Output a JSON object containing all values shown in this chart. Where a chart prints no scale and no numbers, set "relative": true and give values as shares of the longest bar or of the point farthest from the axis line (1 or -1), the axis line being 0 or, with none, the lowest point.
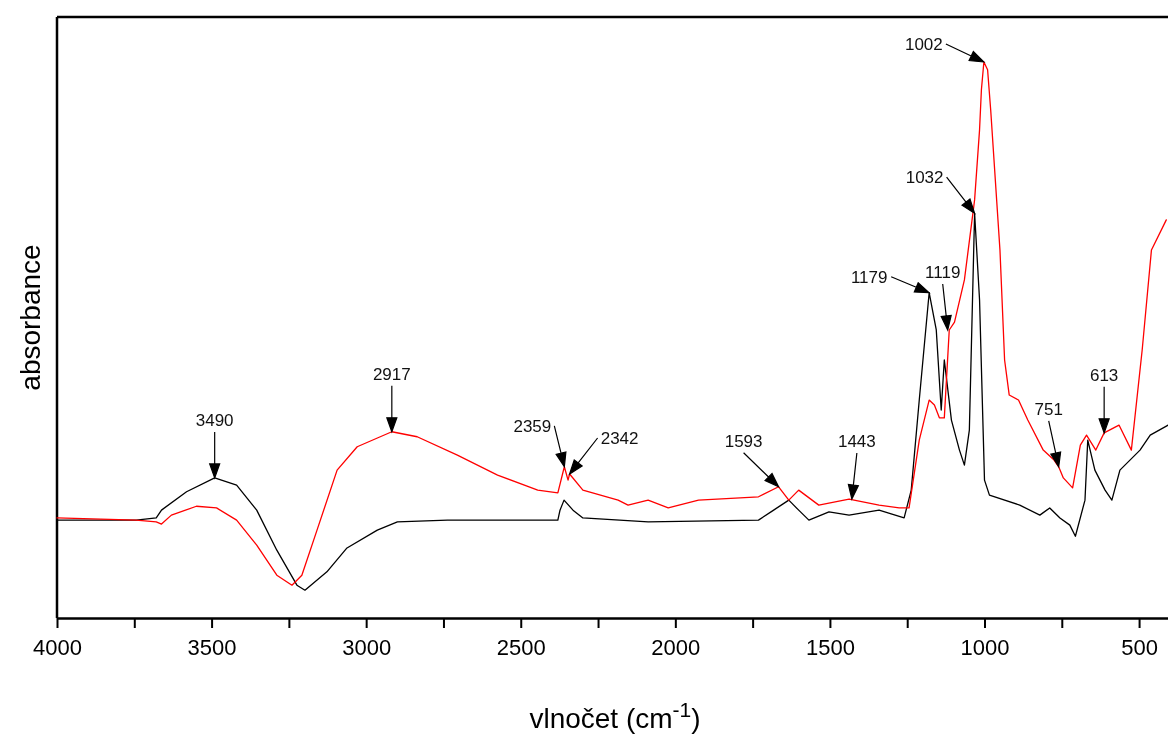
{
  "chart_data": {
    "type": "line",
    "xlabel": "vlnočet (cm$^{-1}$)",
    "ylabel": "absorbance",
    "relative": true,
    "xlim": [
      4000,
      400
    ],
    "xticks": [
      4000,
      {
        "value": 3750,
        "label": null
      },
      3500,
      {
        "value": 3250,
        "label": null
      },
      3000,
      {
        "value": 2750,
        "label": null
      },
      2500,
      {
        "value": 2250,
        "label": null
      },
      2000,
      {
        "value": 1750,
        "label": null
      },
      1500,
      {
        "value": 1250,
        "label": null
      },
      1000,
      {
        "value": 750,
        "label": null
      },
      500
    ],
    "grid": false,
    "series": [
      {
        "color": "#000000",
        "x": [
          4000,
          3744,
          3679,
          3662,
          3581,
          3490,
          3419,
          3354,
          3289,
          3224,
          3198,
          3127,
          3062,
          2964,
          2899,
          2737,
          2380,
          2373,
          2360,
          2331,
          2299,
          2088,
          1731,
          1682,
          1633,
          1601,
          1568,
          1503,
          1438,
          1341,
          1260,
          1237,
          1211,
          1179,
          1156,
          1140,
          1130,
          1107,
          1081,
          1065,
          1049,
          1032,
          1016,
          1000,
          984,
          886,
          821,
          789,
          756,
          724,
          706,
          675,
          666,
          643,
          610,
          588,
          562,
          497,
          464,
          406
        ],
        "values": [
          0.176,
          0.176,
          0.18,
          0.194,
          0.227,
          0.252,
          0.239,
          0.194,
          0.122,
          0.059,
          0.05,
          0.083,
          0.126,
          0.158,
          0.173,
          0.176,
          0.176,
          0.194,
          0.212,
          0.194,
          0.18,
          0.173,
          0.176,
          0.194,
          0.212,
          0.194,
          0.176,
          0.191,
          0.185,
          0.194,
          0.18,
          0.23,
          0.392,
          0.585,
          0.518,
          0.374,
          0.464,
          0.356,
          0.302,
          0.275,
          0.338,
          0.728,
          0.572,
          0.248,
          0.221,
          0.203,
          0.185,
          0.198,
          0.18,
          0.167,
          0.147,
          0.212,
          0.32,
          0.266,
          0.23,
          0.212,
          0.266,
          0.302,
          0.329,
          0.347
        ]
      },
      {
        "color": "#ff0000",
        "x": [
          4000,
          3744,
          3679,
          3662,
          3630,
          3549,
          3484,
          3419,
          3354,
          3289,
          3240,
          3208,
          3159,
          3094,
          3029,
          2917,
          2835,
          2705,
          2575,
          2445,
          2380,
          2359,
          2347,
          2342,
          2299,
          2185,
          2153,
          2088,
          2023,
          1925,
          1731,
          1666,
          1633,
          1601,
          1536,
          1438,
          1341,
          1276,
          1244,
          1211,
          1179,
          1162,
          1146,
          1130,
          1114,
          1097,
          1065,
          1032,
          1016,
          1010,
          1002,
          990,
          980,
          950,
          935,
          920,
          890,
          860,
          810,
          775,
          760,
          745,
          715,
          690,
          670,
          640,
          613,
          565,
          525,
          490,
          460,
          412
        ],
        "values": [
          0.18,
          0.176,
          0.173,
          0.169,
          0.185,
          0.201,
          0.198,
          0.176,
          0.131,
          0.077,
          0.059,
          0.077,
          0.158,
          0.266,
          0.308,
          0.335,
          0.326,
          0.293,
          0.257,
          0.23,
          0.225,
          0.272,
          0.248,
          0.259,
          0.23,
          0.212,
          0.203,
          0.212,
          0.198,
          0.212,
          0.218,
          0.236,
          0.212,
          0.23,
          0.203,
          0.214,
          0.203,
          0.198,
          0.198,
          0.32,
          0.392,
          0.383,
          0.36,
          0.36,
          0.518,
          0.532,
          0.608,
          0.752,
          0.878,
          0.95,
          1,
          0.986,
          0.914,
          0.662,
          0.464,
          0.401,
          0.392,
          0.356,
          0.302,
          0.284,
          0.272,
          0.252,
          0.234,
          0.311,
          0.329,
          0.302,
          0.333,
          0.347,
          0.302,
          0.482,
          0.662,
          0.716
        ]
      }
    ],
    "annotations": [
      {
        "text": "3490",
        "x": 3490,
        "y": 0.252
      },
      {
        "text": "2917",
        "x": 2917,
        "y": 0.335
      },
      {
        "text": "2359",
        "x": 2359,
        "y": 0.272
      },
      {
        "text": "2342",
        "x": 2342,
        "y": 0.259
      },
      {
        "text": "1593",
        "x": 1666,
        "y": 0.236
      },
      {
        "text": "1443",
        "x": 1429,
        "y": 0.214
      },
      {
        "text": "1179",
        "x": 1179,
        "y": 0.585
      },
      {
        "text": "1119",
        "x": 1119,
        "y": 0.518
      },
      {
        "text": "1032",
        "x": 1032,
        "y": 0.728
      },
      {
        "text": "1002",
        "x": 1002,
        "y": 1
      },
      {
        "text": "751",
        "x": 760,
        "y": 0.272
      },
      {
        "text": "613",
        "x": 613,
        "y": 0.333
      }
    ]
  }
}
